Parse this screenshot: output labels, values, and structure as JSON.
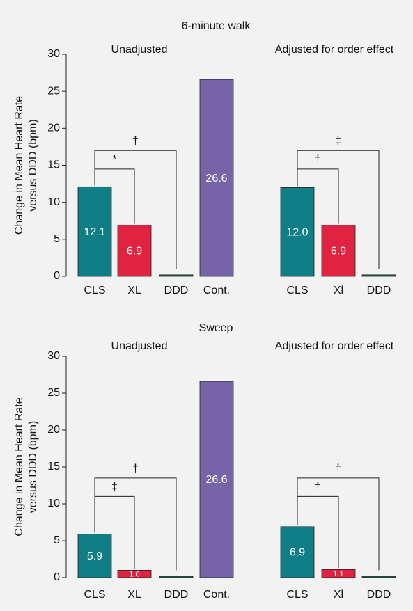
{
  "chart_data": [
    {
      "type": "bar",
      "title": "6-minute walk",
      "ylabel": [
        "Change in Mean Heart Rate",
        "versus DDD (bpm)"
      ],
      "ylim": [
        0,
        30
      ],
      "yticks": [
        0,
        5,
        10,
        15,
        20,
        25,
        30
      ],
      "groups": [
        {
          "name": "Unadjusted",
          "categories": [
            "CLS",
            "XL",
            "DDD",
            "Cont."
          ],
          "values": [
            12.1,
            6.9,
            0.2,
            26.6
          ],
          "value_labels": [
            "12.1",
            "6.9",
            null,
            "26.6"
          ],
          "colors": [
            "#0f7e87",
            "#df2341",
            "#1e5a47",
            "#7565a8"
          ],
          "brackets": [
            "†",
            "*"
          ]
        },
        {
          "name": "Adjusted for order effect",
          "categories": [
            "CLS",
            "Xl",
            "DDD"
          ],
          "values": [
            12.0,
            6.9,
            0.2
          ],
          "value_labels": [
            "12.0",
            "6.9",
            null
          ],
          "colors": [
            "#0f7e87",
            "#df2341",
            "#1e5a47"
          ],
          "brackets": [
            "‡",
            "†"
          ]
        }
      ]
    },
    {
      "type": "bar",
      "title": "Sweep",
      "ylabel": [
        "Change in Mean Heart Rate",
        "versus DDD (bpm)"
      ],
      "ylim": [
        0,
        30
      ],
      "yticks": [
        0,
        5,
        10,
        15,
        20,
        25,
        30
      ],
      "groups": [
        {
          "name": "Unadjusted",
          "categories": [
            "CLS",
            "XL",
            "DDD",
            "Cont."
          ],
          "values": [
            5.9,
            1.0,
            0.2,
            26.6
          ],
          "value_labels": [
            "5.9",
            "1.0",
            null,
            "26.6"
          ],
          "colors": [
            "#0f7e87",
            "#df2341",
            "#1e5a47",
            "#7565a8"
          ],
          "brackets": [
            "†",
            "‡"
          ]
        },
        {
          "name": "Adjusted for order effect",
          "categories": [
            "CLS",
            "Xl",
            "DDD"
          ],
          "values": [
            6.9,
            1.1,
            0.2
          ],
          "value_labels": [
            "6.9",
            "1.1",
            null
          ],
          "colors": [
            "#0f7e87",
            "#df2341",
            "#1e5a47"
          ],
          "brackets": [
            "†",
            "†"
          ]
        }
      ]
    }
  ]
}
